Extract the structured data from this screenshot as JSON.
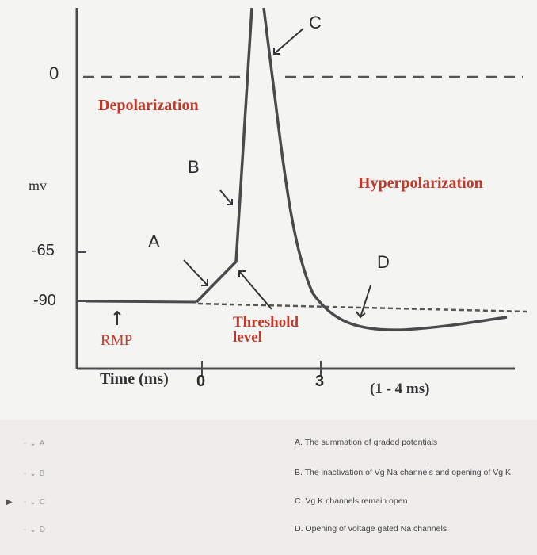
{
  "figure": {
    "y_tick_zero": "0",
    "y_tick_neg65": "-65",
    "y_tick_neg90": "-90",
    "y_axis_label": "mv",
    "depolarization_label": "Depolarization",
    "hyperpolarization_label": "Hyperpolarization",
    "letter_a": "A",
    "letter_b": "B",
    "letter_c": "C",
    "letter_d": "D",
    "rmp_label": "RMP",
    "threshold_line1": "Threshold",
    "threshold_line2": "level",
    "x_axis_label": "Time (ms)",
    "x_tick_zero": "0",
    "x_tick_three": "3",
    "duration_label": "(1 - 4 ms)",
    "colors": {
      "red_label": "#c0392b",
      "trace": "#4a4a4a",
      "dashed": "#555555"
    }
  },
  "quiz": {
    "rows": [
      {
        "select_value": "A",
        "answer": "A. The summation of graded potentials"
      },
      {
        "select_value": "B",
        "answer": "B. The inactivation of Vg Na channels and opening of  Vg K"
      },
      {
        "select_value": "C",
        "answer": "C. Vg K channels remain open"
      },
      {
        "select_value": "D",
        "answer": "D. Opening of voltage gated Na channels"
      }
    ]
  }
}
